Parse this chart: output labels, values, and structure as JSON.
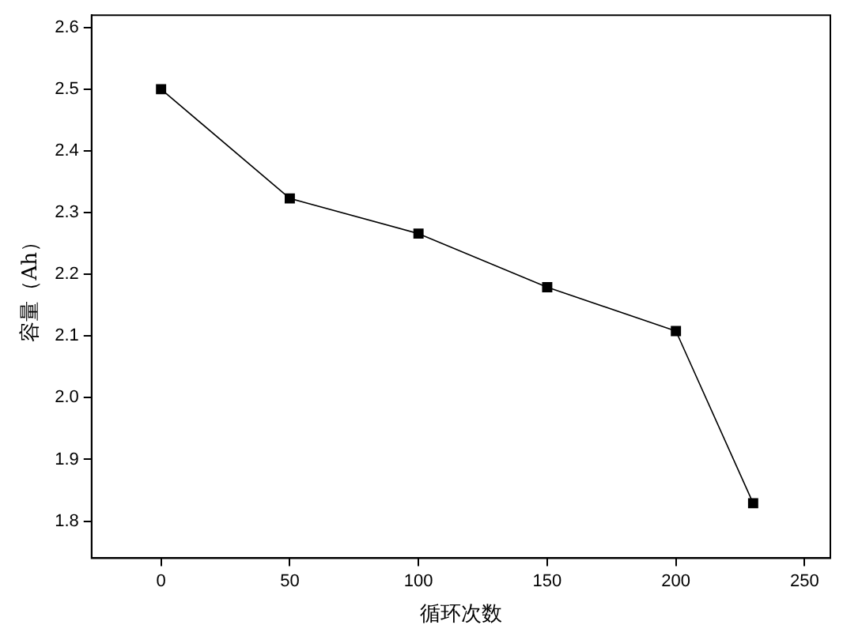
{
  "chart_data": {
    "type": "line",
    "xlabel": "循环次数",
    "ylabel": "容量（Ah）",
    "x": [
      0,
      50,
      100,
      150,
      200,
      230
    ],
    "series": [
      {
        "color": "#000000",
        "values": [
          2.5,
          2.323,
          2.266,
          2.179,
          2.108,
          1.829
        ]
      }
    ],
    "xlim": [
      -27,
      260
    ],
    "xticks": [
      0,
      50,
      100,
      150,
      200,
      250
    ],
    "ylim": [
      1.74,
      2.62
    ],
    "yticks": [
      {
        "value": 1.8,
        "label": "1.8"
      },
      {
        "value": 1.9,
        "label": "1.9"
      },
      {
        "value": 2.0,
        "label": "2.0"
      },
      {
        "value": 2.1,
        "label": "2.1"
      },
      {
        "value": 2.2,
        "label": "2.2"
      },
      {
        "value": 2.3,
        "label": "2.3"
      },
      {
        "value": 2.4,
        "label": "2.4"
      },
      {
        "value": 2.5,
        "label": "2.5"
      },
      {
        "value": 2.6,
        "label": "2.6"
      }
    ],
    "grid": false,
    "legend": false,
    "marker": "square",
    "line_style": "solid"
  }
}
